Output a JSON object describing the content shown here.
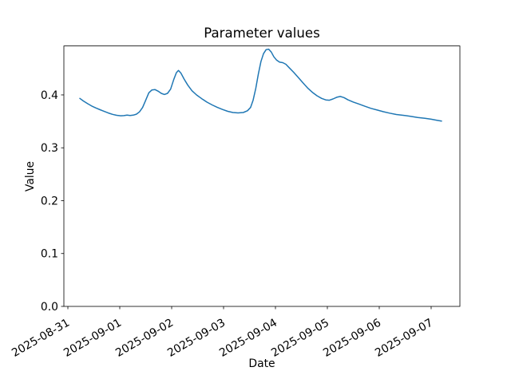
{
  "chart_data": {
    "type": "line",
    "title": "Parameter values",
    "xlabel": "Date",
    "ylabel": "Value",
    "grid": false,
    "legend": null,
    "line_color": "#1f77b4",
    "line_width": 1.5,
    "spine_color": "#000000",
    "x_unit": "days_after_2025-08-31_00:00",
    "xlim_days": [
      -0.077,
      7.554
    ],
    "ylim": [
      0,
      0.4926
    ],
    "xtick_positions_days": [
      0,
      1,
      2,
      3,
      4,
      5,
      6,
      7
    ],
    "xtick_labels": [
      "2025-08-31",
      "2025-09-01",
      "2025-09-02",
      "2025-09-03",
      "2025-09-04",
      "2025-09-05",
      "2025-09-06",
      "2025-09-07"
    ],
    "xtick_label_rotation_deg": 30,
    "ytick_positions": [
      0.0,
      0.1,
      0.2,
      0.3,
      0.4
    ],
    "ytick_labels": [
      "0.0",
      "0.1",
      "0.2",
      "0.3",
      "0.4"
    ],
    "x": [
      0.23,
      0.3,
      0.38,
      0.46,
      0.54,
      0.62,
      0.7,
      0.78,
      0.86,
      0.94,
      1.02,
      1.08,
      1.14,
      1.2,
      1.26,
      1.32,
      1.38,
      1.44,
      1.5,
      1.56,
      1.62,
      1.68,
      1.74,
      1.8,
      1.86,
      1.92,
      1.98,
      2.04,
      2.09,
      2.13,
      2.18,
      2.24,
      2.31,
      2.39,
      2.48,
      2.58,
      2.68,
      2.78,
      2.88,
      2.98,
      3.08,
      3.18,
      3.28,
      3.38,
      3.46,
      3.52,
      3.57,
      3.62,
      3.67,
      3.72,
      3.77,
      3.82,
      3.87,
      3.92,
      3.97,
      4.02,
      4.08,
      4.14,
      4.2,
      4.27,
      4.35,
      4.44,
      4.53,
      4.62,
      4.71,
      4.8,
      4.89,
      4.97,
      5.04,
      5.11,
      5.18,
      5.25,
      5.32,
      5.4,
      5.5,
      5.6,
      5.72,
      5.84,
      5.96,
      6.08,
      6.2,
      6.33,
      6.46,
      6.6,
      6.74,
      6.88,
      7.0,
      7.1,
      7.2
    ],
    "values": [
      0.3935,
      0.3885,
      0.3835,
      0.379,
      0.3753,
      0.372,
      0.3688,
      0.3658,
      0.3632,
      0.3615,
      0.3605,
      0.3608,
      0.3618,
      0.3612,
      0.3618,
      0.3636,
      0.368,
      0.3762,
      0.39,
      0.404,
      0.4094,
      0.41,
      0.407,
      0.403,
      0.4008,
      0.403,
      0.411,
      0.429,
      0.442,
      0.4462,
      0.441,
      0.43,
      0.4185,
      0.408,
      0.4,
      0.3928,
      0.3864,
      0.381,
      0.3764,
      0.3724,
      0.369,
      0.3668,
      0.366,
      0.3668,
      0.37,
      0.3762,
      0.39,
      0.412,
      0.439,
      0.463,
      0.478,
      0.4856,
      0.4866,
      0.481,
      0.472,
      0.466,
      0.462,
      0.461,
      0.458,
      0.451,
      0.443,
      0.433,
      0.4228,
      0.413,
      0.405,
      0.3985,
      0.3934,
      0.3906,
      0.39,
      0.3924,
      0.3956,
      0.397,
      0.395,
      0.3906,
      0.3865,
      0.383,
      0.3786,
      0.3746,
      0.3714,
      0.3682,
      0.3656,
      0.363,
      0.3614,
      0.3596,
      0.3574,
      0.3558,
      0.354,
      0.3522,
      0.3505
    ]
  }
}
